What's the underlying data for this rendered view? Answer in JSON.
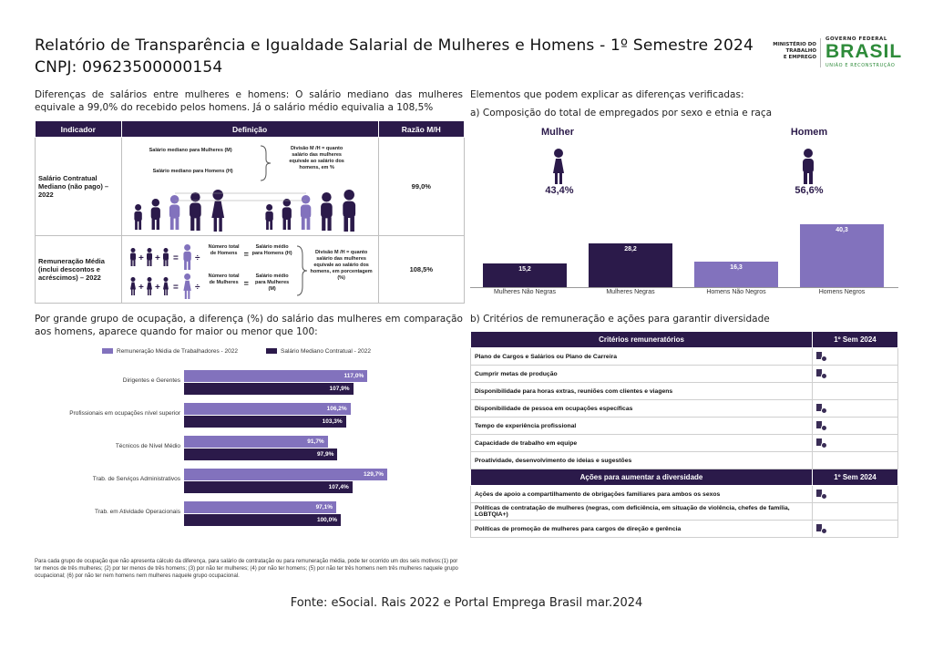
{
  "header": {
    "title": "Relatório de Transparência e Igualdade Salarial de Mulheres e Homens - 1º Semestre 2024",
    "cnpj": "CNPJ: 09623500000154"
  },
  "logo": {
    "ministry_line1": "MINISTÉRIO DO",
    "ministry_line2": "TRABALHO",
    "ministry_line3": "E EMPREGO",
    "gov": "GOVERNO FEDERAL",
    "brasil": "BRASIL",
    "uniao": "UNIÃO E RECONSTRUÇÃO"
  },
  "left": {
    "intro": "Diferenças de salários entre mulheres e homens: O salário mediano das mulheres equivale a 99,0% do recebido pelos homens. Já o salário médio equivalia a 108,5%",
    "table": {
      "headers": [
        "Indicador",
        "Definição",
        "Razão M/H"
      ],
      "row1": {
        "indicator": "Salário Contratual Mediano (não pago) – 2022",
        "def_women": "Salário mediano para Mulheres (M)",
        "def_men": "Salário mediano para Homens (H)",
        "def_div": "Divisão M /H = quanto salário das mulheres equivale ao salário dos homens, em %",
        "ratio": "99,0%"
      },
      "row2": {
        "indicator": "Remuneração Média (inclui descontos e acréscimos) – 2022",
        "num_men": "Número total de Homens",
        "avg_men": "Salário médio para Homens (H)",
        "num_women": "Número total de Mulheres",
        "avg_women": "Salário médio para Mulheres (M)",
        "def_div": "Divisão M /H = quanto salário das mulheres equivale ao salário dos homens, em porcentagem (%)",
        "ratio": "108,5%"
      }
    },
    "occupation_intro": "Por grande grupo de ocupação, a diferença (%) do salário das mulheres em comparação aos homens, aparece quando for maior ou menor que 100:",
    "footnote": "Para cada grupo de ocupação que não apresenta cálculo da diferença, para salário de contratação ou para remuneração média, pode ter ocorrido um dos seis motivos:(1) por ter menos de três mulheres; (2) por ter menos de três homens; (3) por não ter mulheres; (4) por não ter homens; (5) por não ter três homens nem três mulheres naquele grupo ocupacional; (6) por não ter nem homens nem mulheres naquele grupo ocupacional."
  },
  "chart_data": [
    {
      "type": "bar",
      "orientation": "horizontal",
      "title": "",
      "categories": [
        "Dirigentes e Gerentes",
        "Profissionais em ocupações nível superior",
        "Técnicos de Nível Médio",
        "Trab. de Serviços Administrativos",
        "Trab. em Atividade Operacionais"
      ],
      "series": [
        {
          "name": "Remuneração Média de Trabalhadores - 2022",
          "values": [
            117.0,
            106.2,
            91.7,
            129.7,
            97.1
          ],
          "labels": [
            "117,0%",
            "106,2%",
            "91,7%",
            "129,7%",
            "97,1%"
          ],
          "color": "#8272bd"
        },
        {
          "name": "Salário Mediano Contratual - 2022",
          "values": [
            107.9,
            103.3,
            97.9,
            107.4,
            100.0
          ],
          "labels": [
            "107,9%",
            "103,3%",
            "97,9%",
            "107,4%",
            "100,0%"
          ],
          "color": "#2b1a4a"
        }
      ],
      "legend": "top"
    },
    {
      "type": "bar",
      "title": "a) Composição do total de empregados por sexo e etnia e raça",
      "categories": [
        "Mulheres Não Negras",
        "Mulheres Negras",
        "Homens Não Negros",
        "Homens Negros"
      ],
      "values": [
        15.2,
        28.2,
        16.3,
        40.3
      ],
      "labels": [
        "15,2",
        "28,2",
        "16,3",
        "40,3"
      ],
      "colors": [
        "#2b1a4a",
        "#2b1a4a",
        "#8272bd",
        "#8272bd"
      ],
      "totals": {
        "women_label": "Mulher",
        "women_pct": "43,4%",
        "men_label": "Homem",
        "men_pct": "56,6%"
      }
    }
  ],
  "right": {
    "elements_title": "Elementos que podem explicar as diferenças verificadas:",
    "composition_title": "a) Composição do total de empregados por sexo e etnia e raça",
    "criteria_title": "b) Critérios de remuneração e ações para garantir diversidade",
    "criteria_header": "Critérios remuneratórios",
    "sem_header": "1º Sem 2024",
    "criteria": [
      {
        "label": "Plano de Cargos e Salários ou Plano de Carreira",
        "checked": true
      },
      {
        "label": "Cumprir metas de produção",
        "checked": true
      },
      {
        "label": "Disponibilidade para horas extras, reuniões com clientes e viagens",
        "checked": false
      },
      {
        "label": "Disponibilidade de pessoa em ocupações específicas",
        "checked": true
      },
      {
        "label": "Tempo de experiência profissional",
        "checked": true
      },
      {
        "label": "Capacidade de trabalho em equipe",
        "checked": true
      },
      {
        "label": "Proatividade, desenvolvimento de ideias e sugestões",
        "checked": false
      }
    ],
    "actions_header": "Ações para aumentar a diversidade",
    "actions": [
      {
        "label": "Ações de apoio a compartilhamento de obrigações familiares para ambos os sexos",
        "checked": true
      },
      {
        "label": "Políticas de contratação de mulheres (negras, com deficiência, em situação de violência, chefes de família, LGBTQIA+)",
        "checked": false
      },
      {
        "label": "Políticas de promoção de mulheres para cargos de direção e gerência",
        "checked": true
      }
    ]
  },
  "footer": {
    "source": "Fonte: eSocial. Rais 2022 e Portal Emprega Brasil mar.2024"
  }
}
